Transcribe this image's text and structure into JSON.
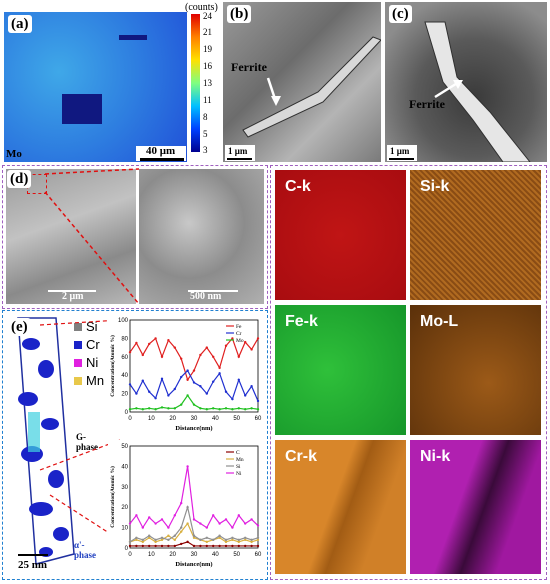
{
  "panel_a": {
    "label": "(a)",
    "element": "Mo",
    "scale": "40 μm",
    "counts_title": "(counts)",
    "colorbar_ticks": [
      "24",
      "21",
      "19",
      "16",
      "13",
      "11",
      "8",
      "5",
      "3"
    ]
  },
  "panel_b": {
    "label": "(b)",
    "phase": "Ferrite",
    "scale": "1 μm"
  },
  "panel_c": {
    "label": "(c)",
    "phase": "Ferrite",
    "scale": "1 μm"
  },
  "panel_d": {
    "label": "(d)",
    "scale_left": "2 μm",
    "scale_right": "500 nm"
  },
  "eds_maps": [
    {
      "label": "C-k",
      "color": "#b80f12"
    },
    {
      "label": "Si-k",
      "color": "#a8651c"
    },
    {
      "label": "Fe-k",
      "color": "#1fa82e"
    },
    {
      "label": "Mo-L",
      "color": "#7a4410"
    },
    {
      "label": "Cr-k",
      "color": "#c97720"
    },
    {
      "label": "Ni-k",
      "color": "#a419a8"
    }
  ],
  "panel_e": {
    "label": "(e)",
    "legend": [
      {
        "name": "Si",
        "color": "#808080"
      },
      {
        "name": "Cr",
        "color": "#1a23c8"
      },
      {
        "name": "Ni",
        "color": "#e020e0"
      },
      {
        "name": "Mn",
        "color": "#e8c84a"
      }
    ],
    "g_phase": "G-phase",
    "alpha_phase": "α'-phase",
    "scale": "25 nm"
  },
  "chart_data": [
    {
      "type": "line",
      "title": "",
      "xlabel": "Distance(nm)",
      "ylabel": "Concentration(Atomic %)",
      "xlim": [
        0,
        60
      ],
      "ylim": [
        0,
        100
      ],
      "xticks": [
        "0",
        "10",
        "20",
        "30",
        "40",
        "50",
        "60"
      ],
      "yticks": [
        "0",
        "20",
        "40",
        "60",
        "80",
        "100"
      ],
      "legend_position": "top-right",
      "series": [
        {
          "name": "Fe",
          "color": "#e02020",
          "x": [
            0,
            3,
            6,
            9,
            12,
            15,
            18,
            21,
            24,
            27,
            30,
            33,
            36,
            39,
            42,
            45,
            48,
            51,
            54,
            57,
            60
          ],
          "values": [
            65,
            75,
            62,
            74,
            80,
            60,
            78,
            70,
            58,
            35,
            45,
            62,
            70,
            60,
            48,
            72,
            80,
            60,
            76,
            68,
            80
          ]
        },
        {
          "name": "Cr",
          "color": "#2030d0",
          "x": [
            0,
            3,
            6,
            9,
            12,
            15,
            18,
            21,
            24,
            27,
            30,
            33,
            36,
            39,
            42,
            45,
            48,
            51,
            54,
            57,
            60
          ],
          "values": [
            30,
            20,
            34,
            22,
            15,
            36,
            18,
            25,
            38,
            45,
            32,
            28,
            20,
            33,
            42,
            22,
            14,
            35,
            18,
            28,
            12
          ]
        },
        {
          "name": "Mo",
          "color": "#20c020",
          "x": [
            0,
            3,
            6,
            9,
            12,
            15,
            18,
            21,
            24,
            27,
            30,
            33,
            36,
            39,
            42,
            45,
            48,
            51,
            54,
            57,
            60
          ],
          "values": [
            3,
            4,
            3,
            4,
            3,
            5,
            4,
            4,
            8,
            18,
            8,
            4,
            3,
            4,
            3,
            4,
            3,
            4,
            3,
            4,
            3
          ]
        }
      ]
    },
    {
      "type": "line",
      "title": "",
      "xlabel": "Distance(nm)",
      "ylabel": "Concentration(Atomic %)",
      "xlim": [
        0,
        60
      ],
      "ylim": [
        0,
        50
      ],
      "xticks": [
        "0",
        "10",
        "20",
        "30",
        "40",
        "50",
        "60"
      ],
      "yticks": [
        "0",
        "10",
        "20",
        "30",
        "40",
        "50"
      ],
      "legend_position": "top-right",
      "series": [
        {
          "name": "C",
          "color": "#8b0000",
          "x": [
            0,
            3,
            6,
            9,
            12,
            15,
            18,
            21,
            24,
            27,
            30,
            33,
            36,
            39,
            42,
            45,
            48,
            51,
            54,
            57,
            60
          ],
          "values": [
            1,
            1,
            1,
            1,
            1,
            1,
            1,
            1,
            2,
            3,
            1,
            1,
            1,
            1,
            1,
            1,
            1,
            1,
            1,
            1,
            1
          ]
        },
        {
          "name": "Mn",
          "color": "#d8b040",
          "x": [
            0,
            3,
            6,
            9,
            12,
            15,
            18,
            21,
            24,
            27,
            30,
            33,
            36,
            39,
            42,
            45,
            48,
            51,
            54,
            57,
            60
          ],
          "values": [
            3,
            4,
            3,
            5,
            3,
            4,
            6,
            4,
            8,
            12,
            5,
            4,
            3,
            4,
            5,
            3,
            4,
            3,
            4,
            3,
            4
          ]
        },
        {
          "name": "Si",
          "color": "#909090",
          "x": [
            0,
            3,
            6,
            9,
            12,
            15,
            18,
            21,
            24,
            27,
            30,
            33,
            36,
            39,
            42,
            45,
            48,
            51,
            54,
            57,
            60
          ],
          "values": [
            3,
            5,
            4,
            6,
            4,
            5,
            4,
            6,
            10,
            20,
            6,
            4,
            5,
            4,
            6,
            4,
            5,
            4,
            5,
            4,
            5
          ]
        },
        {
          "name": "Ni",
          "color": "#e020e0",
          "x": [
            0,
            3,
            6,
            9,
            12,
            15,
            18,
            21,
            24,
            27,
            30,
            33,
            36,
            39,
            42,
            45,
            48,
            51,
            54,
            57,
            60
          ],
          "values": [
            12,
            16,
            10,
            15,
            12,
            14,
            10,
            16,
            22,
            40,
            14,
            12,
            10,
            16,
            12,
            14,
            10,
            16,
            12,
            14,
            11
          ]
        }
      ]
    }
  ]
}
